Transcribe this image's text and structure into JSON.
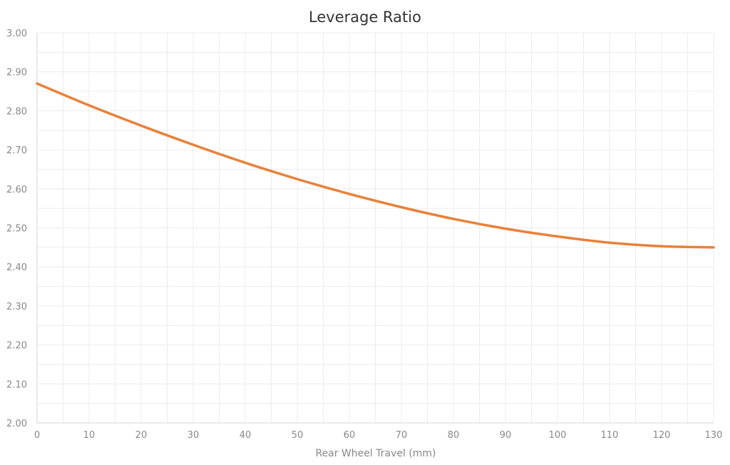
{
  "chart_data": {
    "type": "line",
    "title": "Leverage Ratio",
    "xlabel": "Rear Wheel Travel (mm)",
    "ylabel": "",
    "xlim": [
      0,
      130
    ],
    "ylim": [
      2.0,
      3.0
    ],
    "x_ticks": [
      "0",
      "10",
      "20",
      "30",
      "40",
      "50",
      "60",
      "70",
      "80",
      "90",
      "100",
      "110",
      "120",
      "130"
    ],
    "y_ticks": [
      "2.00",
      "2.10",
      "2.20",
      "2.30",
      "2.40",
      "2.50",
      "2.60",
      "2.70",
      "2.80",
      "2.90",
      "3.00"
    ],
    "grid": true,
    "legend": "none",
    "series": [
      {
        "color": "#e8813a",
        "x": [
          0,
          10,
          20,
          30,
          40,
          50,
          60,
          70,
          80,
          90,
          100,
          110,
          120,
          130
        ],
        "y": [
          2.87,
          2.814,
          2.762,
          2.713,
          2.667,
          2.625,
          2.587,
          2.553,
          2.523,
          2.498,
          2.478,
          2.462,
          2.453,
          2.45
        ]
      }
    ]
  }
}
